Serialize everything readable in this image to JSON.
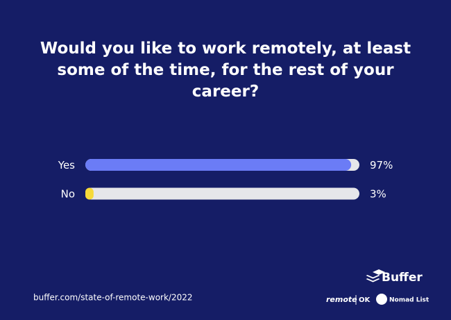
{
  "chart_data": {
    "type": "hbar",
    "title": "Would you like to work remotely, at least some of the time, for the rest of your career?",
    "categories": [
      "Yes",
      "No"
    ],
    "series": [
      {
        "name": "Share",
        "colors": [
          "#6b7cf6",
          "#f6d93a"
        ],
        "values": [
          97,
          3
        ],
        "value_labels": [
          "97%",
          "3%"
        ]
      }
    ],
    "xlim": [
      0,
      100
    ],
    "track_color": "#e6e6ea"
  },
  "footer": {
    "source": "buffer.com/state-of-remote-work/2022",
    "brand": "Buffer",
    "partners": [
      "remote",
      "OK",
      "Nomad List"
    ]
  }
}
